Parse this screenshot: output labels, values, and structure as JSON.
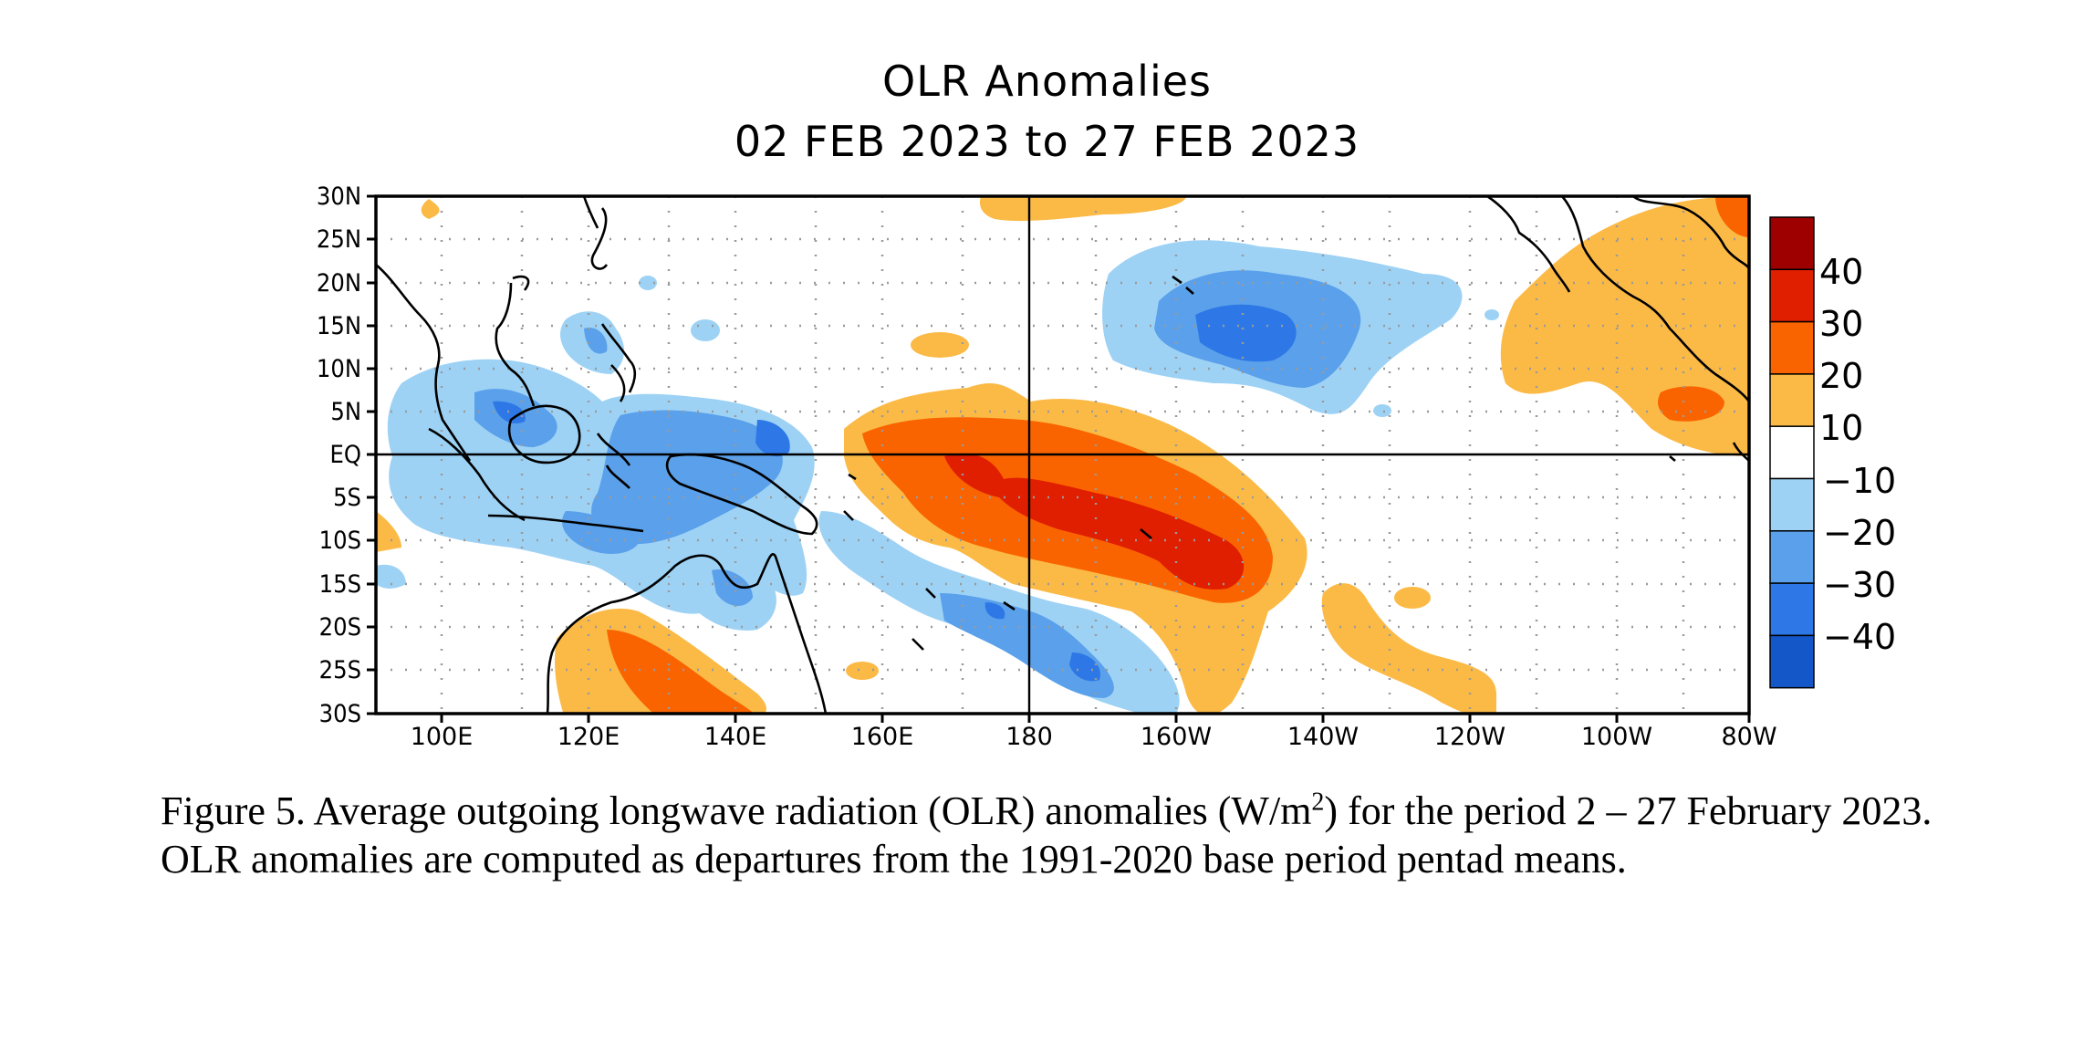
{
  "title": {
    "line1": "OLR Anomalies",
    "line2": "02 FEB 2023 to 27 FEB 2023"
  },
  "lat_labels": [
    "30N",
    "25N",
    "20N",
    "15N",
    "10N",
    "5N",
    "EQ",
    "5S",
    "10S",
    "15S",
    "20S",
    "25S",
    "30S"
  ],
  "lon_labels": [
    "100E",
    "120E",
    "140E",
    "160E",
    "180",
    "160W",
    "140W",
    "120W",
    "100W",
    "80W"
  ],
  "colorbar": {
    "labels": [
      "40",
      "30",
      "20",
      "10",
      "−10",
      "−20",
      "−30",
      "−40"
    ],
    "colors": [
      "#9e0000",
      "#e01e00",
      "#fa6400",
      "#fbba46",
      "#ffffff",
      "#9dd2f5",
      "#5aa0ea",
      "#2d78e6",
      "#1457c8"
    ]
  },
  "caption": {
    "part1": "Figure 5. Average outgoing longwave radiation (OLR) anomalies (W/m",
    "sup": "2",
    "part2": ") for the period 2 – 27 February 2023.  OLR anomalies are computed as departures from the 1991-2020 base period pentad means."
  },
  "map_colors": {
    "pos10": "#fbba46",
    "pos20": "#fa6400",
    "pos30": "#e01e00",
    "neg10": "#9dd2f5",
    "neg20": "#5aa0ea",
    "neg30": "#2d78e6"
  }
}
